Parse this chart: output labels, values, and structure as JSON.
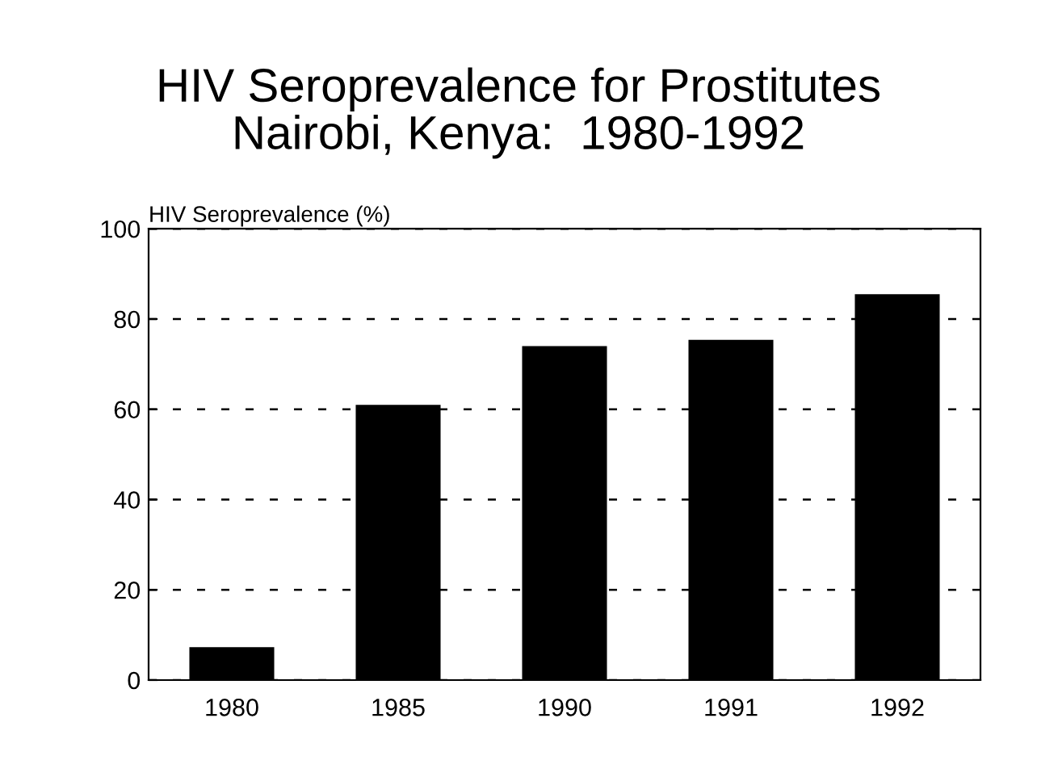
{
  "chart_data": {
    "type": "bar",
    "title": "HIV Seroprevalence for Prostitutes\nNairobi, Kenya:  1980-1992",
    "ylabel": "HIV Seroprevalence (%)",
    "categories": [
      "1980",
      "1985",
      "1990",
      "1991",
      "1992"
    ],
    "values": [
      7.3,
      61,
      74,
      75.4,
      85.5
    ],
    "color": "#000000",
    "ylim": [
      0,
      100
    ],
    "yticks": [
      0,
      20,
      40,
      60,
      80,
      100
    ],
    "grid": "y"
  }
}
